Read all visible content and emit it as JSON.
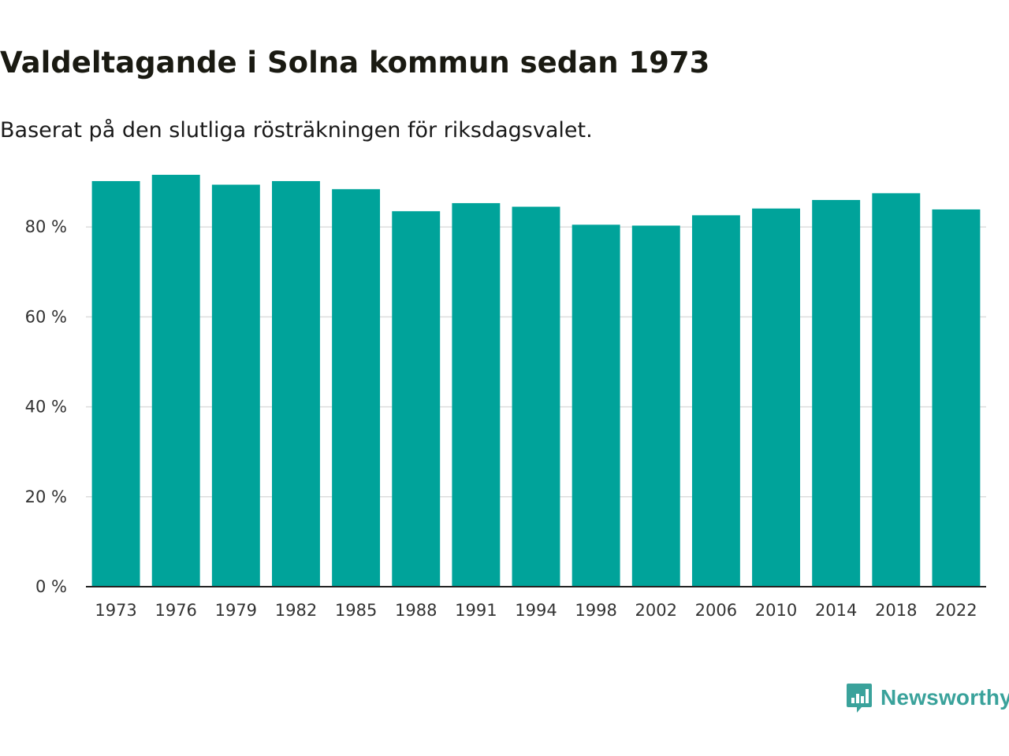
{
  "chart_data": {
    "type": "bar",
    "title": "Valdeltagande i Solna kommun sedan 1973",
    "subtitle": "Baserat på den slutliga rösträkningen för riksdagsvalet.",
    "categories": [
      "1973",
      "1976",
      "1979",
      "1982",
      "1985",
      "1988",
      "1991",
      "1994",
      "1998",
      "2002",
      "2006",
      "2010",
      "2014",
      "2018",
      "2022"
    ],
    "values": [
      90.2,
      91.6,
      89.4,
      90.2,
      88.4,
      83.5,
      85.3,
      84.5,
      80.5,
      80.3,
      82.6,
      84.1,
      86.0,
      87.5,
      83.9
    ],
    "ylim": [
      0,
      100
    ],
    "yticks": [
      0,
      20,
      40,
      60,
      80
    ],
    "ytick_labels": [
      "0 %",
      "20 %",
      "40 %",
      "60 %",
      "80 %"
    ],
    "xlabel": "",
    "ylabel": "",
    "grid": true,
    "bar_color": "#00a39a"
  },
  "branding": {
    "name": "Newsworthy",
    "color": "#3aa29b"
  }
}
